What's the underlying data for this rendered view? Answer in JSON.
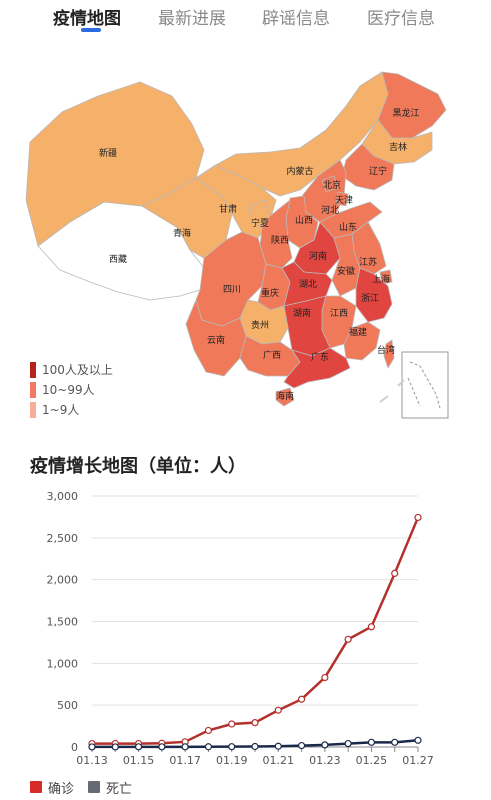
{
  "tabs": [
    {
      "label": "疫情地图",
      "active": true
    },
    {
      "label": "最新进展",
      "active": false
    },
    {
      "label": "辟谣信息",
      "active": false
    },
    {
      "label": "医疗信息",
      "active": false
    }
  ],
  "map": {
    "colors": {
      "high": "#e0453f",
      "mid": "#f0795a",
      "low": "#f5b06a",
      "none": "#ffffff",
      "border": "#b9b9b9"
    },
    "legend": [
      {
        "label": "100人及以上",
        "color": "#b5231d"
      },
      {
        "label": "10~99人",
        "color": "#f27a64"
      },
      {
        "label": "1~9人",
        "color": "#f9ae9c"
      }
    ],
    "provinces": [
      "新疆",
      "西藏",
      "青海",
      "甘肃",
      "内蒙古",
      "黑龙江",
      "吉林",
      "辽宁",
      "北京",
      "天津",
      "河北",
      "山西",
      "宁夏",
      "陕西",
      "山东",
      "河南",
      "江苏",
      "安徽",
      "上海",
      "四川",
      "重庆",
      "湖北",
      "浙江",
      "江西",
      "湖南",
      "贵州",
      "云南",
      "广西",
      "福建",
      "台湾",
      "广东",
      "海南"
    ]
  },
  "chart_title": "疫情增长地图（单位：人）",
  "chart_data": {
    "type": "line",
    "x": [
      "01.13",
      "01.14",
      "01.15",
      "01.16",
      "01.17",
      "01.18",
      "01.19",
      "01.20",
      "01.21",
      "01.22",
      "01.23",
      "01.24",
      "01.25",
      "01.26",
      "01.27"
    ],
    "x_tick_labels": [
      "01.13",
      "01.15",
      "01.17",
      "01.19",
      "01.21",
      "01.23",
      "01.25",
      "01.27"
    ],
    "series": [
      {
        "name": "确诊",
        "color": "#b5302d",
        "values": [
          41,
          41,
          41,
          45,
          62,
          198,
          275,
          291,
          440,
          571,
          830,
          1287,
          1437,
          2075,
          2744
        ]
      },
      {
        "name": "死亡",
        "color": "#1a2a4a",
        "values": [
          1,
          1,
          2,
          2,
          2,
          3,
          4,
          6,
          9,
          17,
          25,
          41,
          56,
          56,
          80
        ]
      }
    ],
    "ylim": [
      0,
      3000
    ],
    "yticks": [
      "0",
      "500",
      "1,000",
      "1,500",
      "2,000",
      "2,500",
      "3,000"
    ],
    "grid": true,
    "legend_position": "bottom-left",
    "legend": [
      {
        "name": "确诊",
        "color": "#d82a26"
      },
      {
        "name": "死亡",
        "color": "#666a72"
      }
    ]
  }
}
